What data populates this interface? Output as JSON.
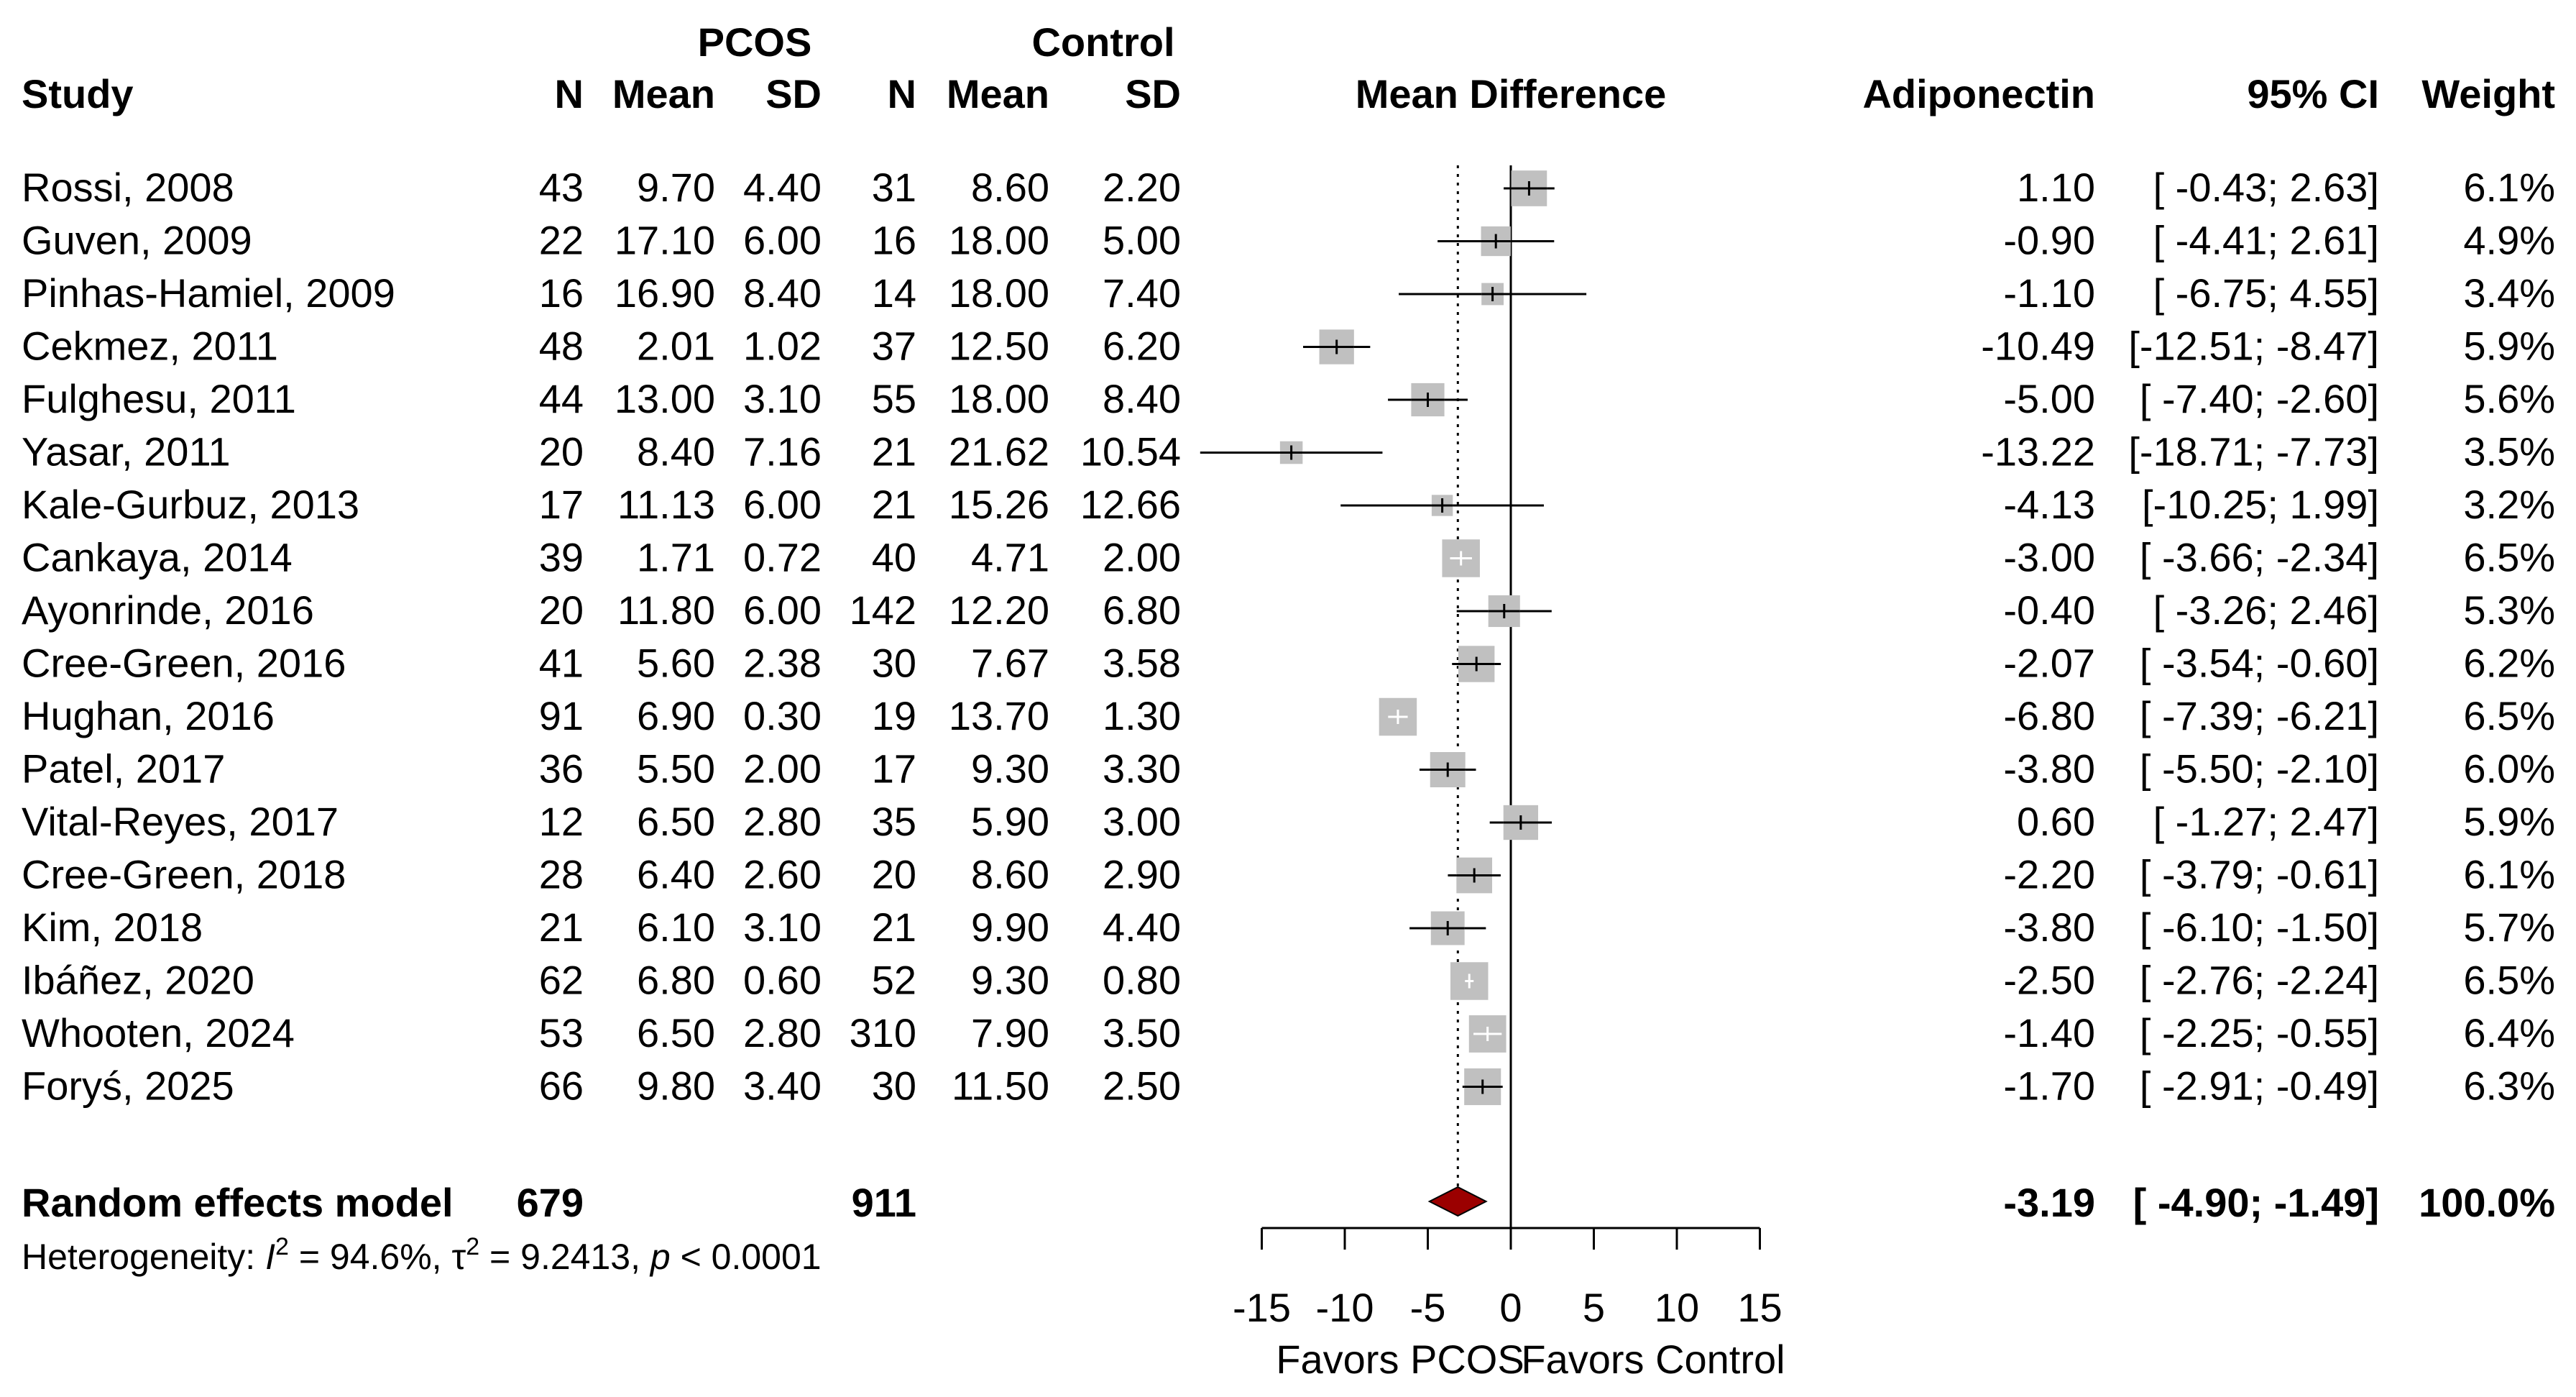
{
  "header": {
    "group1": "PCOS",
    "group2": "Control",
    "study": "Study",
    "n1": "N",
    "mean1": "Mean",
    "sd1": "SD",
    "n2": "N",
    "mean2": "Mean",
    "sd2": "SD",
    "mean_difference": "Mean Difference",
    "outcome": "Adiponectin",
    "ci": "95% CI",
    "weight": "Weight"
  },
  "studies": [
    {
      "study": "Rossi, 2008",
      "n1": "43",
      "mean1": "9.70",
      "sd1": "4.40",
      "n2": "31",
      "mean2": "8.60",
      "sd2": "2.20",
      "md_text": "1.10",
      "ci_text": "[ -0.43; 2.63]",
      "weight_text": "6.1%"
    },
    {
      "study": "Guven, 2009",
      "n1": "22",
      "mean1": "17.10",
      "sd1": "6.00",
      "n2": "16",
      "mean2": "18.00",
      "sd2": "5.00",
      "md_text": "-0.90",
      "ci_text": "[ -4.41; 2.61]",
      "weight_text": "4.9%"
    },
    {
      "study": "Pinhas-Hamiel, 2009",
      "n1": "16",
      "mean1": "16.90",
      "sd1": "8.40",
      "n2": "14",
      "mean2": "18.00",
      "sd2": "7.40",
      "md_text": "-1.10",
      "ci_text": "[ -6.75; 4.55]",
      "weight_text": "3.4%"
    },
    {
      "study": "Cekmez, 2011",
      "n1": "48",
      "mean1": "2.01",
      "sd1": "1.02",
      "n2": "37",
      "mean2": "12.50",
      "sd2": "6.20",
      "md_text": "-10.49",
      "ci_text": "[-12.51; -8.47]",
      "weight_text": "5.9%"
    },
    {
      "study": "Fulghesu, 2011",
      "n1": "44",
      "mean1": "13.00",
      "sd1": "3.10",
      "n2": "55",
      "mean2": "18.00",
      "sd2": "8.40",
      "md_text": "-5.00",
      "ci_text": "[ -7.40; -2.60]",
      "weight_text": "5.6%"
    },
    {
      "study": "Yasar, 2011",
      "n1": "20",
      "mean1": "8.40",
      "sd1": "7.16",
      "n2": "21",
      "mean2": "21.62",
      "sd2": "10.54",
      "md_text": "-13.22",
      "ci_text": "[-18.71; -7.73]",
      "weight_text": "3.5%"
    },
    {
      "study": "Kale-Gurbuz, 2013",
      "n1": "17",
      "mean1": "11.13",
      "sd1": "6.00",
      "n2": "21",
      "mean2": "15.26",
      "sd2": "12.66",
      "md_text": "-4.13",
      "ci_text": "[-10.25; 1.99]",
      "weight_text": "3.2%"
    },
    {
      "study": "Cankaya, 2014",
      "n1": "39",
      "mean1": "1.71",
      "sd1": "0.72",
      "n2": "40",
      "mean2": "4.71",
      "sd2": "2.00",
      "md_text": "-3.00",
      "ci_text": "[ -3.66; -2.34]",
      "weight_text": "6.5%"
    },
    {
      "study": "Ayonrinde, 2016",
      "n1": "20",
      "mean1": "11.80",
      "sd1": "6.00",
      "n2": "142",
      "mean2": "12.20",
      "sd2": "6.80",
      "md_text": "-0.40",
      "ci_text": "[ -3.26; 2.46]",
      "weight_text": "5.3%"
    },
    {
      "study": "Cree-Green, 2016",
      "n1": "41",
      "mean1": "5.60",
      "sd1": "2.38",
      "n2": "30",
      "mean2": "7.67",
      "sd2": "3.58",
      "md_text": "-2.07",
      "ci_text": "[ -3.54; -0.60]",
      "weight_text": "6.2%"
    },
    {
      "study": "Hughan, 2016",
      "n1": "91",
      "mean1": "6.90",
      "sd1": "0.30",
      "n2": "19",
      "mean2": "13.70",
      "sd2": "1.30",
      "md_text": "-6.80",
      "ci_text": "[ -7.39; -6.21]",
      "weight_text": "6.5%"
    },
    {
      "study": "Patel, 2017",
      "n1": "36",
      "mean1": "5.50",
      "sd1": "2.00",
      "n2": "17",
      "mean2": "9.30",
      "sd2": "3.30",
      "md_text": "-3.80",
      "ci_text": "[ -5.50; -2.10]",
      "weight_text": "6.0%"
    },
    {
      "study": "Vital-Reyes, 2017",
      "n1": "12",
      "mean1": "6.50",
      "sd1": "2.80",
      "n2": "35",
      "mean2": "5.90",
      "sd2": "3.00",
      "md_text": "0.60",
      "ci_text": "[ -1.27; 2.47]",
      "weight_text": "5.9%"
    },
    {
      "study": "Cree-Green, 2018",
      "n1": "28",
      "mean1": "6.40",
      "sd1": "2.60",
      "n2": "20",
      "mean2": "8.60",
      "sd2": "2.90",
      "md_text": "-2.20",
      "ci_text": "[ -3.79; -0.61]",
      "weight_text": "6.1%"
    },
    {
      "study": "Kim, 2018",
      "n1": "21",
      "mean1": "6.10",
      "sd1": "3.10",
      "n2": "21",
      "mean2": "9.90",
      "sd2": "4.40",
      "md_text": "-3.80",
      "ci_text": "[ -6.10; -1.50]",
      "weight_text": "5.7%"
    },
    {
      "study": "Ibáñez, 2020",
      "n1": "62",
      "mean1": "6.80",
      "sd1": "0.60",
      "n2": "52",
      "mean2": "9.30",
      "sd2": "0.80",
      "md_text": "-2.50",
      "ci_text": "[ -2.76; -2.24]",
      "weight_text": "6.5%"
    },
    {
      "study": "Whooten, 2024",
      "n1": "53",
      "mean1": "6.50",
      "sd1": "2.80",
      "n2": "310",
      "mean2": "7.90",
      "sd2": "3.50",
      "md_text": "-1.40",
      "ci_text": "[ -2.25; -0.55]",
      "weight_text": "6.4%"
    },
    {
      "study": "Foryś, 2025",
      "n1": "66",
      "mean1": "9.80",
      "sd1": "3.40",
      "n2": "30",
      "mean2": "11.50",
      "sd2": "2.50",
      "md_text": "-1.70",
      "ci_text": "[ -2.91; -0.49]",
      "weight_text": "6.3%"
    }
  ],
  "summary": {
    "label": "Random effects model",
    "n1": "679",
    "n2": "911",
    "md_text": "-3.19",
    "ci_text": "[ -4.90; -1.49]",
    "weight_text": "100.0%"
  },
  "heterogeneity": {
    "prefix": "Heterogeneity: ",
    "i2": "I",
    "i2_value": " = 94.6%, ",
    "tau": "τ",
    "tau_value": " = 9.2413, ",
    "p": "p",
    "p_value": " < 0.0001",
    "sup": "2"
  },
  "axis": {
    "ticks": [
      -15,
      -10,
      -5,
      0,
      5,
      10,
      15
    ],
    "tick_labels": [
      "-15",
      "-10",
      "-5",
      "0",
      "5",
      "10",
      "15"
    ],
    "left_label": "Favors PCOS",
    "right_label": "Favors Control"
  },
  "colors": {
    "box": "#c0c0c0",
    "diamond": "#9b0000",
    "line": "#000000"
  },
  "chart_data": {
    "type": "forest",
    "xlim": [
      -15,
      15
    ],
    "null_value": 0,
    "summary_line": -3.19,
    "points": [
      {
        "study": "Rossi, 2008",
        "md": 1.1,
        "lo": -0.43,
        "hi": 2.63,
        "weight": 6.1
      },
      {
        "study": "Guven, 2009",
        "md": -0.9,
        "lo": -4.41,
        "hi": 2.61,
        "weight": 4.9
      },
      {
        "study": "Pinhas-Hamiel, 2009",
        "md": -1.1,
        "lo": -6.75,
        "hi": 4.55,
        "weight": 3.4
      },
      {
        "study": "Cekmez, 2011",
        "md": -10.49,
        "lo": -12.51,
        "hi": -8.47,
        "weight": 5.9
      },
      {
        "study": "Fulghesu, 2011",
        "md": -5.0,
        "lo": -7.4,
        "hi": -2.6,
        "weight": 5.6
      },
      {
        "study": "Yasar, 2011",
        "md": -13.22,
        "lo": -18.71,
        "hi": -7.73,
        "weight": 3.5
      },
      {
        "study": "Kale-Gurbuz, 2013",
        "md": -4.13,
        "lo": -10.25,
        "hi": 1.99,
        "weight": 3.2
      },
      {
        "study": "Cankaya, 2014",
        "md": -3.0,
        "lo": -3.66,
        "hi": -2.34,
        "weight": 6.5
      },
      {
        "study": "Ayonrinde, 2016",
        "md": -0.4,
        "lo": -3.26,
        "hi": 2.46,
        "weight": 5.3
      },
      {
        "study": "Cree-Green, 2016",
        "md": -2.07,
        "lo": -3.54,
        "hi": -0.6,
        "weight": 6.2
      },
      {
        "study": "Hughan, 2016",
        "md": -6.8,
        "lo": -7.39,
        "hi": -6.21,
        "weight": 6.5
      },
      {
        "study": "Patel, 2017",
        "md": -3.8,
        "lo": -5.5,
        "hi": -2.1,
        "weight": 6.0
      },
      {
        "study": "Vital-Reyes, 2017",
        "md": 0.6,
        "lo": -1.27,
        "hi": 2.47,
        "weight": 5.9
      },
      {
        "study": "Cree-Green, 2018",
        "md": -2.2,
        "lo": -3.79,
        "hi": -0.61,
        "weight": 6.1
      },
      {
        "study": "Kim, 2018",
        "md": -3.8,
        "lo": -6.1,
        "hi": -1.5,
        "weight": 5.7
      },
      {
        "study": "Ibáñez, 2020",
        "md": -2.5,
        "lo": -2.76,
        "hi": -2.24,
        "weight": 6.5
      },
      {
        "study": "Whooten, 2024",
        "md": -1.4,
        "lo": -2.25,
        "hi": -0.55,
        "weight": 6.4
      },
      {
        "study": "Foryś, 2025",
        "md": -1.7,
        "lo": -2.91,
        "hi": -0.49,
        "weight": 6.3
      }
    ],
    "summary": {
      "md": -3.19,
      "lo": -4.9,
      "hi": -1.49
    }
  }
}
